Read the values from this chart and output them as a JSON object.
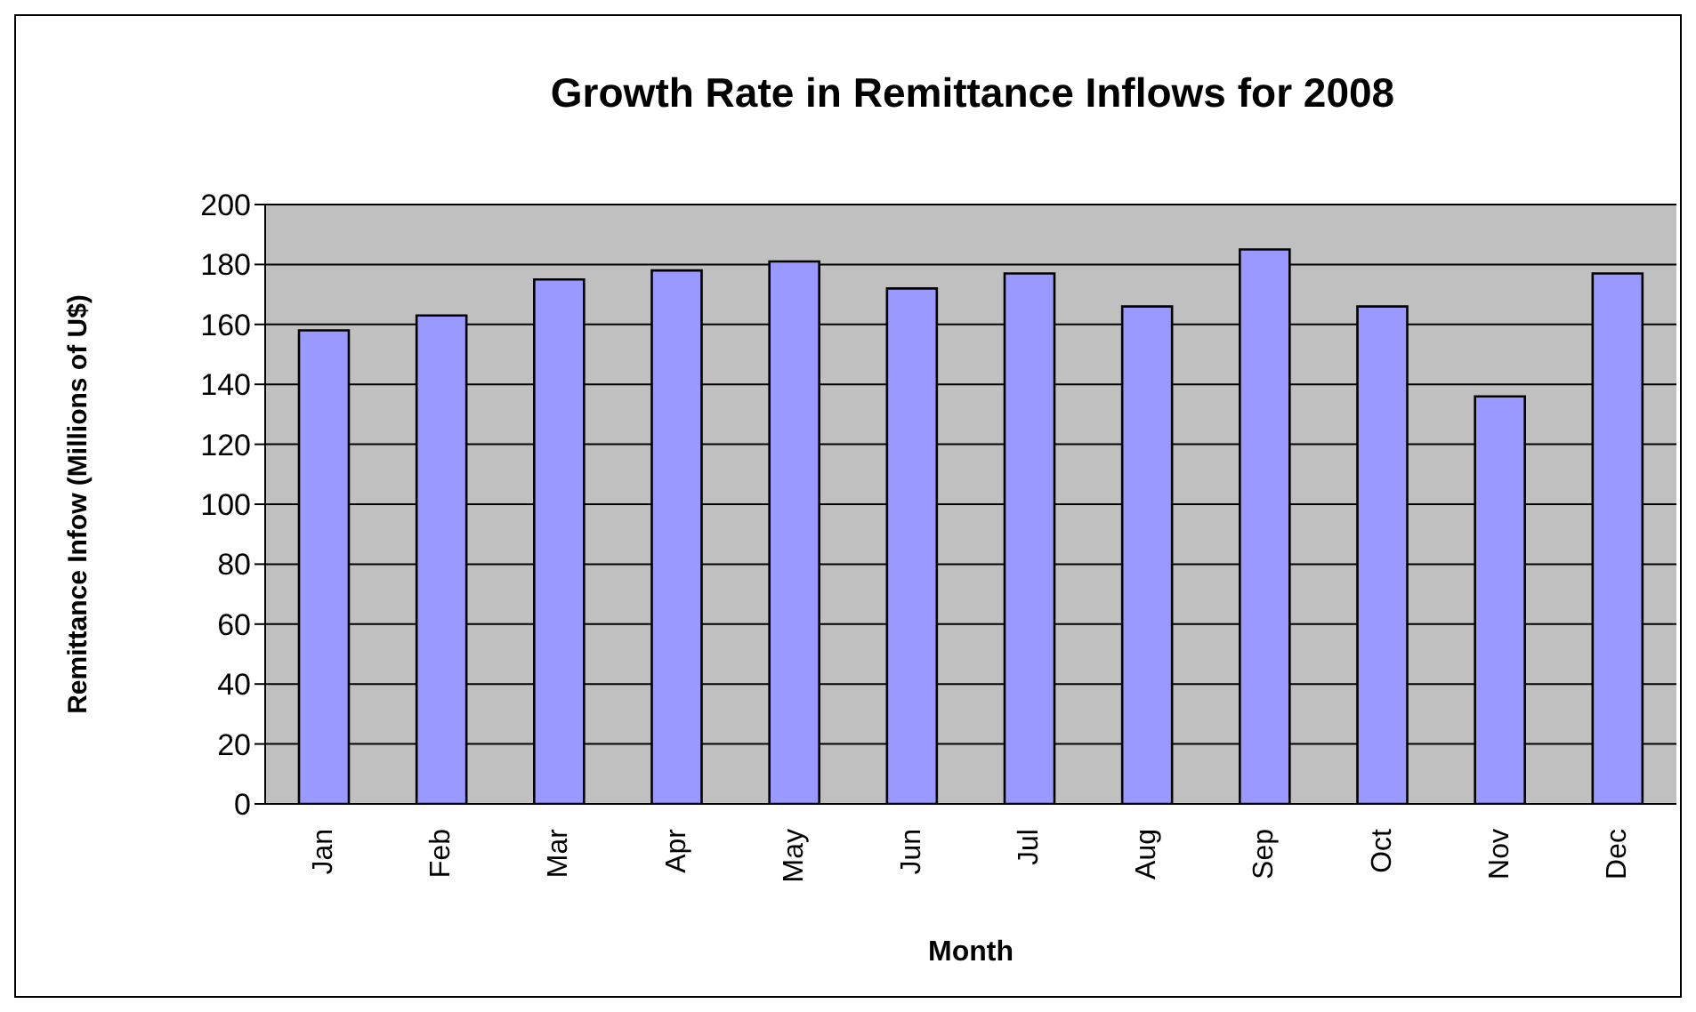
{
  "chart_data": {
    "type": "bar",
    "title": "Growth Rate in Remittance Inflows for 2008",
    "xlabel": "Month",
    "ylabel": "Remittance Infow (Millions of U$)",
    "categories": [
      "Jan",
      "Feb",
      "Mar",
      "Apr",
      "May",
      "Jun",
      "Jul",
      "Aug",
      "Sep",
      "Oct",
      "Nov",
      "Dec"
    ],
    "values": [
      158,
      163,
      175,
      178,
      181,
      172,
      177,
      166,
      185,
      166,
      136,
      177
    ],
    "color": "#9999ff",
    "ylim": [
      0,
      200
    ],
    "yticks": [
      0,
      20,
      40,
      60,
      80,
      100,
      120,
      140,
      160,
      180,
      200
    ],
    "grid": "y",
    "legend": false
  }
}
